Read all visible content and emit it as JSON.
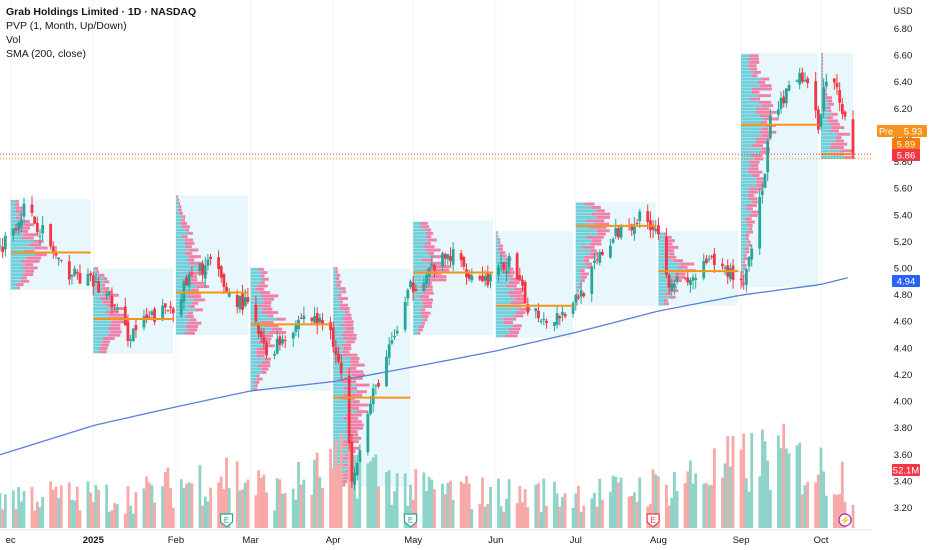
{
  "legend": {
    "title": "Grab Holdings Limited · 1D · NASDAQ",
    "indicators": [
      "PVP (1, Month, Up/Down)",
      "Vol",
      "SMA (200, close)"
    ]
  },
  "currency": "USD",
  "price_axis": {
    "ticks": [
      "6.80",
      "6.60",
      "6.40",
      "6.20",
      "6.00",
      "5.80",
      "5.60",
      "5.40",
      "5.20",
      "5.00",
      "4.80",
      "4.60",
      "4.40",
      "4.20",
      "4.00",
      "3.80",
      "3.60",
      "3.40",
      "3.20"
    ]
  },
  "time_axis": {
    "ticks": [
      {
        "label": "ec",
        "date": "2024-12-01"
      },
      {
        "label": "2025",
        "date": "2025-01-01",
        "bold": true
      },
      {
        "label": "Feb",
        "date": "2025-02-01"
      },
      {
        "label": "Mar",
        "date": "2025-03-01"
      },
      {
        "label": "Apr",
        "date": "2025-04-01"
      },
      {
        "label": "May",
        "date": "2025-05-01"
      },
      {
        "label": "Jun",
        "date": "2025-06-01"
      },
      {
        "label": "Jul",
        "date": "2025-07-01"
      },
      {
        "label": "Aug",
        "date": "2025-08-01"
      },
      {
        "label": "Sep",
        "date": "2025-09-01"
      },
      {
        "label": "Oct",
        "date": "2025-10-01"
      }
    ]
  },
  "price_badges": {
    "pre": {
      "tag": "Pre",
      "value": "5.93",
      "color": "#f7931a"
    },
    "last_close": {
      "value": "5.89",
      "color": "#f57c00"
    },
    "current": {
      "value": "5.86",
      "color": "#f23645"
    },
    "sma": {
      "value": "4.94",
      "color": "#2962ff"
    },
    "volume": {
      "value": "52.1M",
      "color": "#f23645"
    }
  },
  "events": [
    {
      "type": "earnings",
      "letter": "E",
      "date": "2025-02-20",
      "color": "#26a69a"
    },
    {
      "type": "earnings",
      "letter": "E",
      "date": "2025-04-30",
      "color": "#26a69a"
    },
    {
      "type": "earnings",
      "letter": "E",
      "date": "2025-07-30",
      "color": "#f23645"
    },
    {
      "type": "flash",
      "letter": "⚡",
      "date": "2025-10-10",
      "color": "#9c27b0"
    }
  ],
  "colors": {
    "up": "#26a69a",
    "down": "#f23645",
    "up_volume": "#8dd3c8",
    "down_volume": "#f7a9a7",
    "sma": "#5b7fd8",
    "poc": "#f7931a",
    "profile_up": "#5cc8d4",
    "profile_down": "#f06292",
    "profile_bg": "#e8f7fb"
  },
  "chart_data": {
    "type": "candlestick",
    "title": "Grab Holdings Limited · 1D · NASDAQ",
    "y_range": [
      3.1,
      6.9
    ],
    "x_range": [
      "2024-11-27",
      "2025-10-13"
    ],
    "monthly_profiles": [
      {
        "month": "2024-12",
        "start": "2024-12-01",
        "end": "2024-12-31",
        "poc": 5.12,
        "low": 4.84,
        "high": 5.52
      },
      {
        "month": "2025-01",
        "start": "2025-01-01",
        "end": "2025-01-31",
        "poc": 4.62,
        "low": 4.36,
        "high": 5.0
      },
      {
        "month": "2025-02",
        "start": "2025-02-01",
        "end": "2025-02-28",
        "poc": 4.82,
        "low": 4.5,
        "high": 5.55
      },
      {
        "month": "2025-03",
        "start": "2025-03-01",
        "end": "2025-03-31",
        "poc": 4.58,
        "low": 4.08,
        "high": 5.0
      },
      {
        "month": "2025-04",
        "start": "2025-04-01",
        "end": "2025-04-30",
        "poc": 4.03,
        "low": 3.36,
        "high": 5.0
      },
      {
        "month": "2025-05",
        "start": "2025-05-01",
        "end": "2025-05-31",
        "poc": 4.97,
        "low": 4.5,
        "high": 5.36
      },
      {
        "month": "2025-06",
        "start": "2025-06-01",
        "end": "2025-06-30",
        "poc": 4.72,
        "low": 4.48,
        "high": 5.28
      },
      {
        "month": "2025-07",
        "start": "2025-07-01",
        "end": "2025-07-31",
        "poc": 5.32,
        "low": 4.72,
        "high": 5.5
      },
      {
        "month": "2025-08",
        "start": "2025-08-01",
        "end": "2025-08-31",
        "poc": 4.98,
        "low": 4.72,
        "high": 5.28
      },
      {
        "month": "2025-09",
        "start": "2025-09-01",
        "end": "2025-09-30",
        "poc": 6.08,
        "low": 4.86,
        "high": 6.62
      },
      {
        "month": "2025-10",
        "start": "2025-10-01",
        "end": "2025-10-13",
        "poc": 5.86,
        "low": 5.82,
        "high": 6.62
      }
    ],
    "close_path": [
      [
        "2024-11-27",
        5.15
      ],
      [
        "2024-12-06",
        5.45
      ],
      [
        "2024-12-13",
        5.28
      ],
      [
        "2024-12-20",
        5.0
      ],
      [
        "2024-12-31",
        4.9
      ],
      [
        "2025-01-07",
        4.78
      ],
      [
        "2025-01-14",
        4.5
      ],
      [
        "2025-01-22",
        4.62
      ],
      [
        "2025-01-31",
        4.72
      ],
      [
        "2025-02-07",
        4.95
      ],
      [
        "2025-02-14",
        5.05
      ],
      [
        "2025-02-21",
        4.8
      ],
      [
        "2025-02-28",
        4.72
      ],
      [
        "2025-03-07",
        4.35
      ],
      [
        "2025-03-14",
        4.5
      ],
      [
        "2025-03-21",
        4.65
      ],
      [
        "2025-03-31",
        4.55
      ],
      [
        "2025-04-04",
        4.2
      ],
      [
        "2025-04-08",
        3.45
      ],
      [
        "2025-04-16",
        4.05
      ],
      [
        "2025-04-25",
        4.55
      ],
      [
        "2025-04-30",
        4.85
      ],
      [
        "2025-05-09",
        5.02
      ],
      [
        "2025-05-16",
        5.1
      ],
      [
        "2025-05-23",
        4.95
      ],
      [
        "2025-05-30",
        4.92
      ],
      [
        "2025-06-06",
        5.05
      ],
      [
        "2025-06-13",
        4.72
      ],
      [
        "2025-06-20",
        4.62
      ],
      [
        "2025-06-27",
        4.68
      ],
      [
        "2025-07-04",
        4.85
      ],
      [
        "2025-07-11",
        5.12
      ],
      [
        "2025-07-18",
        5.3
      ],
      [
        "2025-07-25",
        5.38
      ],
      [
        "2025-07-31",
        5.32
      ],
      [
        "2025-08-05",
        4.92
      ],
      [
        "2025-08-12",
        4.88
      ],
      [
        "2025-08-20",
        5.05
      ],
      [
        "2025-08-27",
        4.98
      ],
      [
        "2025-09-02",
        4.9
      ],
      [
        "2025-09-05",
        5.2
      ],
      [
        "2025-09-10",
        5.7
      ],
      [
        "2025-09-12",
        6.1
      ],
      [
        "2025-09-18",
        6.3
      ],
      [
        "2025-09-24",
        6.45
      ],
      [
        "2025-09-30",
        6.1
      ],
      [
        "2025-10-03",
        6.45
      ],
      [
        "2025-10-08",
        6.3
      ],
      [
        "2025-10-13",
        5.86
      ]
    ],
    "sma_200": [
      [
        "2024-11-27",
        3.6
      ],
      [
        "2025-01-01",
        3.82
      ],
      [
        "2025-02-01",
        3.96
      ],
      [
        "2025-03-01",
        4.08
      ],
      [
        "2025-04-01",
        4.15
      ],
      [
        "2025-05-01",
        4.26
      ],
      [
        "2025-06-01",
        4.38
      ],
      [
        "2025-07-01",
        4.52
      ],
      [
        "2025-08-01",
        4.68
      ],
      [
        "2025-09-01",
        4.8
      ],
      [
        "2025-10-01",
        4.88
      ],
      [
        "2025-10-13",
        4.94
      ]
    ],
    "volume_path": [
      [
        "2024-11-27",
        0.3
      ],
      [
        "2025-01-15",
        0.28
      ],
      [
        "2025-02-20",
        0.5
      ],
      [
        "2025-03-10",
        0.32
      ],
      [
        "2025-04-08",
        0.6
      ],
      [
        "2025-05-01",
        0.35
      ],
      [
        "2025-06-10",
        0.3
      ],
      [
        "2025-07-15",
        0.32
      ],
      [
        "2025-08-01",
        0.38
      ],
      [
        "2025-09-12",
        0.65
      ],
      [
        "2025-10-13",
        0.45
      ]
    ]
  }
}
